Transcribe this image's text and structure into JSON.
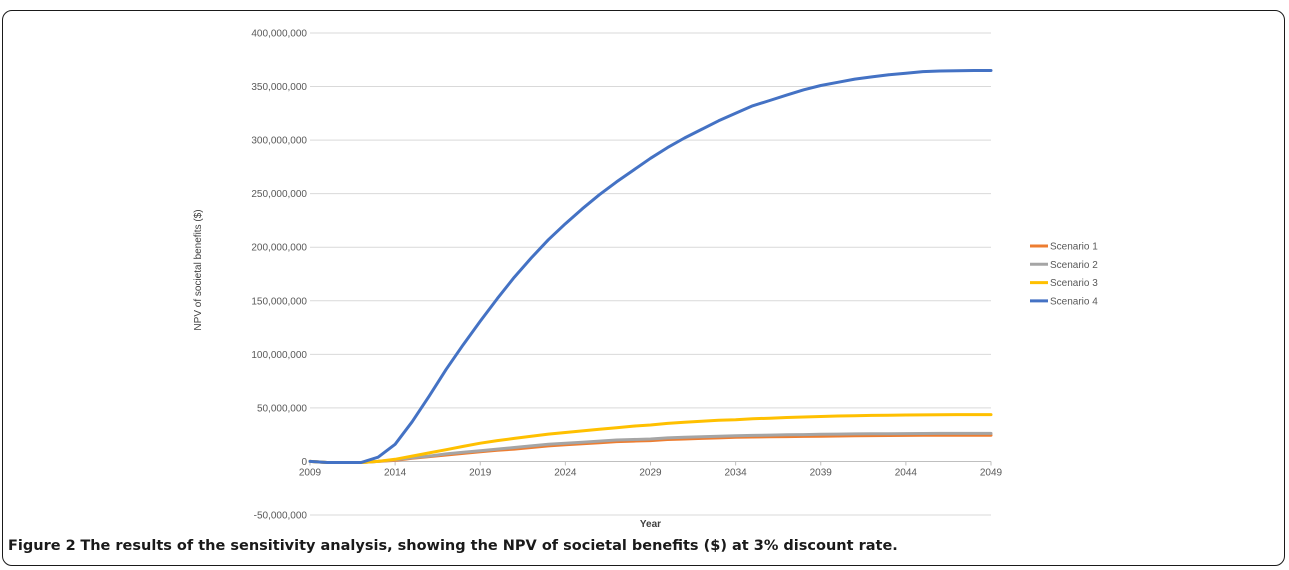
{
  "figure": {
    "label": "Figure 2",
    "caption": "The results of the sensitivity analysis, showing the NPV of societal benefits ($) at 3% discount rate."
  },
  "chart_data": {
    "type": "line",
    "title": "",
    "xlabel": "Year",
    "ylabel": "NPV of societal benefits ($)",
    "xlim": [
      2009,
      2049
    ],
    "ylim": [
      -50000000,
      400000000
    ],
    "x_ticks": [
      "2009",
      "2014",
      "2019",
      "2024",
      "2029",
      "2034",
      "2039",
      "2044",
      "2049"
    ],
    "y_ticks": [
      "400,000,000",
      "350,000,000",
      "300,000,000",
      "250,000,000",
      "200,000,000",
      "150,000,000",
      "100,000,000",
      "50,000,000",
      "0",
      "-50,000,000"
    ],
    "y_tick_values": [
      400000000,
      350000000,
      300000000,
      250000000,
      200000000,
      150000000,
      100000000,
      50000000,
      0,
      -50000000
    ],
    "grid": "horizontal",
    "legend_position": "right",
    "x": [
      2009,
      2010,
      2011,
      2012,
      2013,
      2014,
      2015,
      2016,
      2017,
      2018,
      2019,
      2020,
      2021,
      2022,
      2023,
      2024,
      2025,
      2026,
      2027,
      2028,
      2029,
      2030,
      2031,
      2032,
      2033,
      2034,
      2035,
      2036,
      2037,
      2038,
      2039,
      2040,
      2041,
      2042,
      2043,
      2044,
      2045,
      2046,
      2047,
      2048,
      2049
    ],
    "series": [
      {
        "name": "Scenario 1",
        "color": "#ED7D31",
        "values": [
          0,
          -1000000,
          -1000000,
          -1000000,
          0,
          1000000,
          3000000,
          4500000,
          6000000,
          7500000,
          9000000,
          10500000,
          11500000,
          13000000,
          14500000,
          15500000,
          16500000,
          17500000,
          18500000,
          19000000,
          19500000,
          20500000,
          21000000,
          21500000,
          22000000,
          22500000,
          22800000,
          23000000,
          23200000,
          23400000,
          23600000,
          23800000,
          24000000,
          24100000,
          24200000,
          24300000,
          24400000,
          24500000,
          24500000,
          24500000,
          24500000
        ]
      },
      {
        "name": "Scenario 2",
        "color": "#A5A5A5",
        "values": [
          0,
          -1000000,
          -1000000,
          -1000000,
          0,
          1500000,
          3500000,
          5000000,
          7000000,
          8500000,
          10000000,
          11500000,
          13000000,
          14500000,
          16000000,
          17000000,
          18000000,
          19000000,
          20000000,
          20500000,
          21000000,
          22000000,
          22500000,
          23000000,
          23500000,
          24000000,
          24300000,
          24600000,
          24900000,
          25100000,
          25300000,
          25500000,
          25700000,
          25800000,
          25900000,
          26000000,
          26100000,
          26200000,
          26200000,
          26200000,
          26200000
        ]
      },
      {
        "name": "Scenario 3",
        "color": "#FFC000",
        "values": [
          0,
          -1000000,
          -1000000,
          -1000000,
          0,
          2000000,
          5000000,
          8000000,
          11000000,
          14000000,
          17000000,
          19500000,
          21500000,
          23500000,
          25500000,
          27000000,
          28500000,
          30000000,
          31500000,
          33000000,
          34000000,
          35500000,
          36500000,
          37500000,
          38500000,
          39000000,
          39800000,
          40400000,
          41000000,
          41500000,
          42000000,
          42400000,
          42700000,
          43000000,
          43200000,
          43400000,
          43500000,
          43600000,
          43700000,
          43700000,
          43700000
        ]
      },
      {
        "name": "Scenario 4",
        "color": "#4472C4",
        "values": [
          0,
          -1000000,
          -1000000,
          -1000000,
          4000000,
          16000000,
          37000000,
          61000000,
          86000000,
          109000000,
          131000000,
          152000000,
          172000000,
          190000000,
          207000000,
          222000000,
          236000000,
          249000000,
          261000000,
          272000000,
          283000000,
          293000000,
          302000000,
          310000000,
          318000000,
          325000000,
          332000000,
          337000000,
          342000000,
          347000000,
          351000000,
          354000000,
          357000000,
          359000000,
          361000000,
          362500000,
          364000000,
          364500000,
          364800000,
          365000000,
          365000000
        ]
      }
    ]
  }
}
